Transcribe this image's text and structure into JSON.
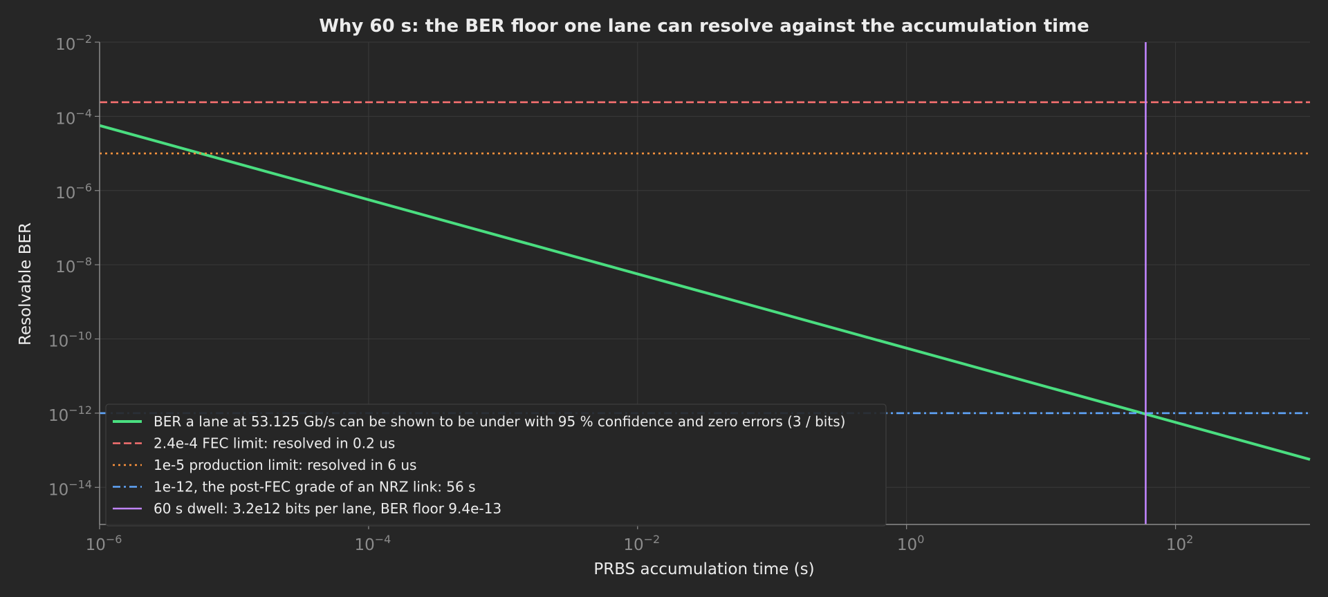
{
  "chart_data": {
    "type": "line",
    "title": "Why 60 s: the BER floor one lane can resolve against the accumulation time",
    "xlabel": "PRBS accumulation time (s)",
    "ylabel": "Resolvable BER",
    "xscale": "log",
    "yscale": "log",
    "xlim": [
      1e-06,
      1000
    ],
    "ylim": [
      1e-15,
      0.01
    ],
    "xticks": [
      {
        "base": "10",
        "exp": "−6",
        "value": 1e-06
      },
      {
        "base": "10",
        "exp": "−4",
        "value": 0.0001
      },
      {
        "base": "10",
        "exp": "−2",
        "value": 0.01
      },
      {
        "base": "10",
        "exp": "0",
        "value": 1
      },
      {
        "base": "10",
        "exp": "2",
        "value": 100
      }
    ],
    "yticks": [
      {
        "base": "10",
        "exp": "−2",
        "value": 0.01
      },
      {
        "base": "10",
        "exp": "−4",
        "value": 0.0001
      },
      {
        "base": "10",
        "exp": "−6",
        "value": 1e-06
      },
      {
        "base": "10",
        "exp": "−8",
        "value": 1e-08
      },
      {
        "base": "10",
        "exp": "−10",
        "value": 1e-10
      },
      {
        "base": "10",
        "exp": "−12",
        "value": 1e-12
      },
      {
        "base": "10",
        "exp": "−14",
        "value": 1e-14
      }
    ],
    "grid": true,
    "legend_position": "lower-left",
    "series": [
      {
        "name": "BER a lane at 53.125 Gb/s can be shown to be under with 95 % confidence and zero errors (3 / bits)",
        "kind": "line",
        "style": "solid",
        "color": "#4ade80",
        "x": [
          1e-06,
          1000
        ],
        "y": [
          5.65e-05,
          5.65e-14
        ]
      },
      {
        "name": "2.4e-4 FEC limit: resolved in 0.2 us",
        "kind": "hline",
        "style": "dashed",
        "color": "#f87171",
        "y": 0.00024
      },
      {
        "name": "1e-5 production limit: resolved in 6 us",
        "kind": "hline",
        "style": "dotted",
        "color": "#fb923c",
        "y": 1e-05
      },
      {
        "name": "1e-12, the post-FEC grade of an NRZ link: 56 s",
        "kind": "hline",
        "style": "dashdot",
        "color": "#60a5fa",
        "y": 1e-12
      },
      {
        "name": "60 s dwell: 3.2e12 bits per lane, BER floor 9.4e-13",
        "kind": "vline",
        "style": "solid",
        "color": "#c084fc",
        "x": 60
      }
    ]
  }
}
